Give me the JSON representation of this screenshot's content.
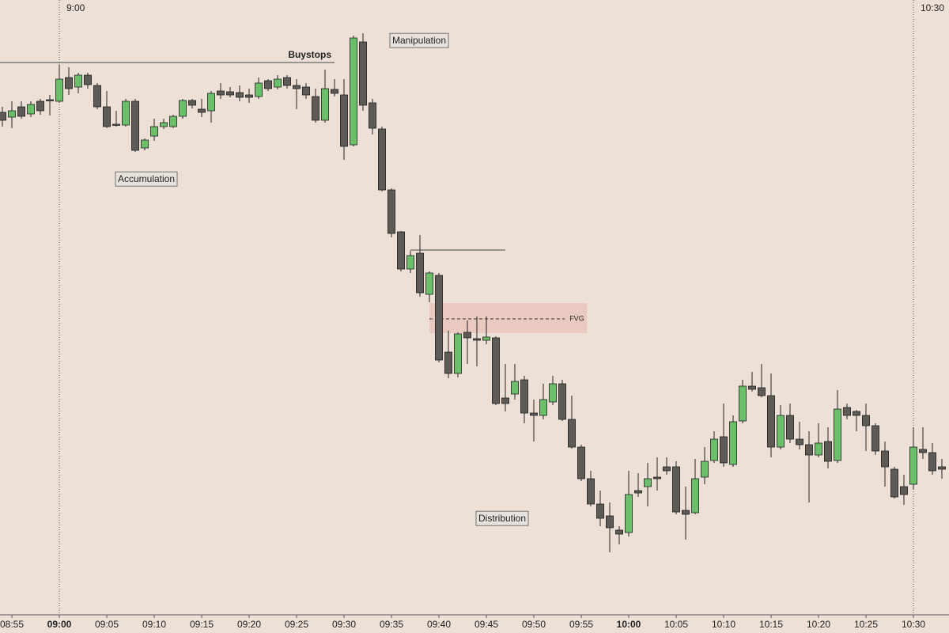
{
  "chart_data": {
    "type": "candlestick",
    "up_color": "#6cbf6a",
    "down_color": "#5e5a56",
    "x": [
      534,
      535,
      536,
      537,
      538,
      539,
      540,
      541,
      542,
      543,
      544,
      545,
      546,
      547,
      548,
      549,
      550,
      551,
      552,
      553,
      554,
      555,
      556,
      557,
      558,
      559,
      560,
      561,
      562,
      563,
      564,
      565,
      566,
      567,
      568,
      569,
      570,
      571,
      572,
      573,
      574,
      575,
      576,
      577,
      578,
      579,
      580,
      581,
      582,
      583,
      584,
      585,
      586,
      587,
      588,
      589,
      590,
      591,
      592,
      593,
      594,
      595,
      596,
      597,
      598,
      599,
      600,
      601,
      602,
      603,
      604,
      605,
      606,
      607,
      608,
      609,
      610,
      611,
      612,
      613,
      614,
      615,
      616,
      617,
      618,
      619,
      620,
      621,
      622,
      623,
      624,
      625,
      626,
      627,
      628,
      629,
      630,
      631,
      632,
      633
    ],
    "open": [
      658,
      652,
      665,
      656,
      672,
      674,
      672,
      702,
      690,
      705,
      692,
      665,
      643,
      642,
      672,
      613,
      628,
      640,
      640,
      653,
      673,
      662,
      660,
      685,
      684,
      683,
      680,
      678,
      698,
      690,
      702,
      692,
      690,
      678,
      648,
      687,
      680,
      617,
      747,
      670,
      637,
      560,
      507,
      460,
      480,
      428,
      452,
      355,
      328,
      380,
      372,
      370,
      373,
      297,
      302,
      320,
      278,
      275,
      292,
      315,
      270,
      235,
      195,
      163,
      148,
      130,
      127,
      180,
      185,
      197,
      210,
      210,
      155,
      152,
      197,
      218,
      248,
      213,
      268,
      312,
      310,
      300,
      235,
      275,
      245,
      238,
      225,
      242,
      218,
      285,
      280,
      275,
      262,
      230,
      207,
      185,
      188,
      232,
      228,
      210
    ],
    "high": [
      665,
      672,
      672,
      672,
      675,
      680,
      718,
      715,
      708,
      708,
      695,
      685,
      660,
      675,
      675,
      625,
      650,
      650,
      655,
      675,
      675,
      675,
      685,
      695,
      690,
      692,
      688,
      702,
      700,
      705,
      705,
      700,
      695,
      688,
      712,
      700,
      700,
      755,
      758,
      675,
      640,
      562,
      508,
      482,
      503,
      457,
      455,
      382,
      380,
      395,
      400,
      400,
      375,
      340,
      340,
      325,
      295,
      315,
      325,
      320,
      300,
      238,
      205,
      180,
      165,
      135,
      205,
      202,
      215,
      222,
      222,
      217,
      185,
      220,
      235,
      255,
      290,
      275,
      320,
      330,
      340,
      328,
      288,
      290,
      267,
      255,
      265,
      260,
      307,
      290,
      282,
      290,
      265,
      242,
      210,
      200,
      260,
      260,
      240,
      220
    ],
    "low": [
      640,
      638,
      650,
      652,
      655,
      654,
      670,
      680,
      682,
      688,
      662,
      638,
      640,
      640,
      608,
      610,
      622,
      637,
      638,
      650,
      663,
      652,
      645,
      675,
      677,
      672,
      670,
      675,
      685,
      687,
      688,
      662,
      675,
      645,
      645,
      678,
      598,
      615,
      660,
      630,
      558,
      500,
      457,
      455,
      425,
      418,
      342,
      322,
      323,
      340,
      337,
      365,
      288,
      280,
      295,
      265,
      242,
      270,
      288,
      268,
      233,
      192,
      160,
      135,
      102,
      112,
      122,
      172,
      160,
      180,
      200,
      150,
      118,
      150,
      188,
      215,
      210,
      210,
      265,
      305,
      298,
      222,
      232,
      240,
      232,
      165,
      222,
      208,
      215,
      270,
      255,
      230,
      225,
      185,
      170,
      162,
      182,
      220,
      200,
      195
    ],
    "close": [
      648,
      660,
      653,
      668,
      660,
      673,
      700,
      688,
      705,
      693,
      665,
      640,
      642,
      672,
      610,
      623,
      640,
      645,
      653,
      673,
      667,
      658,
      682,
      680,
      680,
      677,
      677,
      695,
      688,
      700,
      692,
      688,
      680,
      648,
      688,
      682,
      615,
      752,
      667,
      638,
      560,
      505,
      460,
      477,
      430,
      455,
      345,
      328,
      378,
      373,
      370,
      374,
      290,
      290,
      318,
      278,
      275,
      295,
      315,
      270,
      235,
      195,
      163,
      145,
      133,
      125,
      175,
      177,
      195,
      195,
      205,
      153,
      150,
      195,
      217,
      245,
      215,
      267,
      312,
      308,
      300,
      235,
      275,
      245,
      238,
      225,
      240,
      217,
      283,
      275,
      275,
      262,
      230,
      210,
      172,
      175,
      235,
      228,
      205,
      207
    ],
    "xlim": [
      533.75,
      633.75
    ],
    "ylim": [
      0,
      800
    ],
    "xticks": [
      {
        "value": 535,
        "label": "08:55"
      },
      {
        "value": 540,
        "label": "09:00"
      },
      {
        "value": 545,
        "label": "09:05"
      },
      {
        "value": 550,
        "label": "09:10"
      },
      {
        "value": 555,
        "label": "09:15"
      },
      {
        "value": 560,
        "label": "09:20"
      },
      {
        "value": 565,
        "label": "09:25"
      },
      {
        "value": 570,
        "label": "09:30"
      },
      {
        "value": 575,
        "label": "09:35"
      },
      {
        "value": 580,
        "label": "09:40"
      },
      {
        "value": 585,
        "label": "09:45"
      },
      {
        "value": 590,
        "label": "09:50"
      },
      {
        "value": 595,
        "label": "09:55"
      },
      {
        "value": 600,
        "label": "10:00"
      },
      {
        "value": 605,
        "label": "10:05"
      },
      {
        "value": 610,
        "label": "10:10"
      },
      {
        "value": 615,
        "label": "10:15"
      },
      {
        "value": 620,
        "label": "10:20"
      },
      {
        "value": 625,
        "label": "10:25"
      },
      {
        "value": 630,
        "label": "10:30"
      }
    ],
    "session_marks": [
      {
        "value": 540,
        "label": "9:00"
      },
      {
        "value": 630,
        "label": "10:30"
      }
    ],
    "levels": [
      {
        "label": "Buystops",
        "value": 721,
        "x": [
          533.75,
          569
        ]
      },
      {
        "value": 484,
        "x": [
          577,
          587
        ]
      }
    ],
    "fvg": {
      "label": "FVG",
      "range": [
        379,
        417
      ],
      "mid": 397,
      "x": [
        579,
        595.6
      ]
    },
    "phases": [
      "Accumulation",
      "Manipulation",
      "Distribution"
    ]
  }
}
